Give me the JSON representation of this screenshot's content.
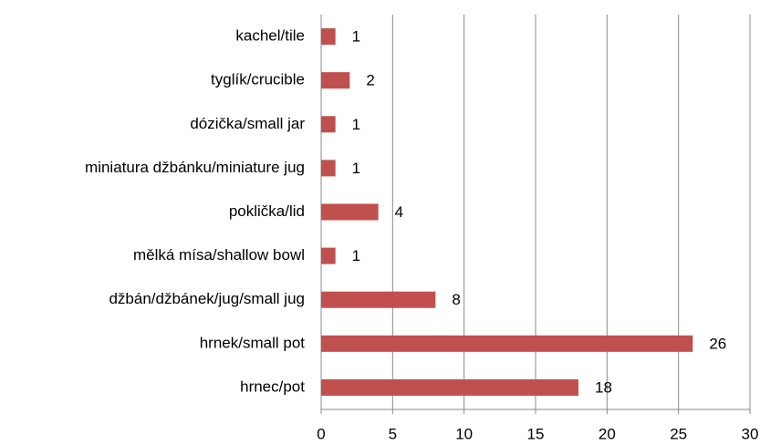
{
  "chart_data": {
    "type": "hbar",
    "categories": [
      "kachel/tile",
      "tyglík/crucible",
      "dózička/small jar",
      "miniatura džbánku/miniature jug",
      "poklička/lid",
      "mělká mísa/shallow bowl",
      "džbán/džbánek/jug/small jug",
      "hrnek/small pot",
      "hrnec/pot"
    ],
    "values": [
      1,
      2,
      1,
      1,
      4,
      1,
      8,
      26,
      18
    ],
    "color": "#c0504d",
    "xlim": [
      0,
      30
    ],
    "xticks": [
      0,
      5,
      10,
      15,
      20,
      25,
      30
    ],
    "grid": true
  }
}
